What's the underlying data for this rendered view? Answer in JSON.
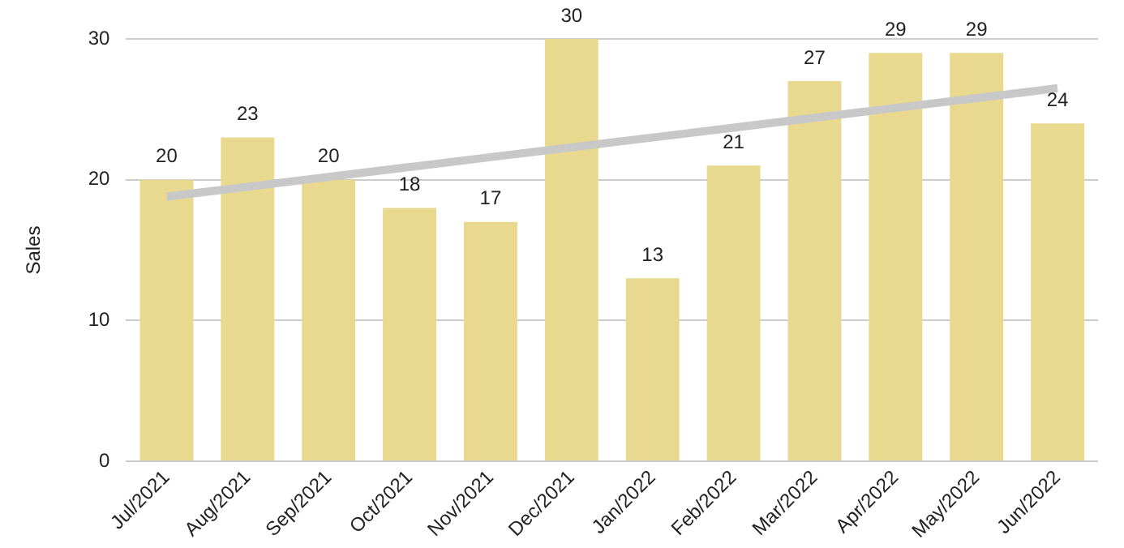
{
  "chart_data": {
    "type": "bar",
    "ylabel": "Sales",
    "categories": [
      "Jul/2021",
      "Aug/2021",
      "Sep/2021",
      "Oct/2021",
      "Nov/2021",
      "Dec/2021",
      "Jan/2022",
      "Feb/2022",
      "Mar/2022",
      "Apr/2022",
      "May/2022",
      "Jun/2022"
    ],
    "series": [
      {
        "color": "#e8d98f",
        "values": [
          20,
          23,
          20,
          18,
          17,
          30,
          13,
          21,
          27,
          29,
          29,
          24
        ],
        "value_labels": [
          "20",
          "23",
          "20",
          "18",
          "17",
          "30",
          "13",
          "21",
          "27",
          "29",
          "29",
          "24"
        ]
      },
      {
        "type": "line",
        "color": "#c8c8c8",
        "values": [
          18.8,
          19.5,
          20.2,
          20.9,
          21.6,
          22.3,
          23.0,
          23.7,
          24.4,
          25.1,
          25.8,
          26.5
        ]
      }
    ],
    "ylim": [
      0,
      30
    ],
    "yticks": [
      0,
      10,
      20,
      30
    ],
    "grid": "y",
    "legend": false
  }
}
